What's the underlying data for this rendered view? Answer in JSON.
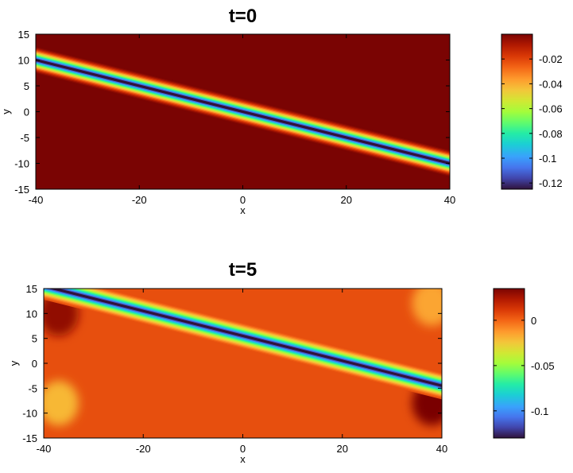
{
  "chart_data": [
    {
      "type": "heatmap",
      "title": "t=0",
      "xlabel": "x",
      "ylabel": "y",
      "xlim": [
        -40,
        40
      ],
      "ylim": [
        -15,
        15
      ],
      "xticks": [
        "-40",
        "-20",
        "0",
        "20",
        "40"
      ],
      "yticks": [
        "15",
        "10",
        "5",
        "0",
        "-5",
        "-10",
        "-15"
      ],
      "colorbar": {
        "min": -0.125,
        "max": 0,
        "ticks": [
          "-0.02",
          "-0.04",
          "-0.06",
          "-0.08",
          "-0.1",
          "-0.12"
        ]
      },
      "colormap": "turbo",
      "feature": {
        "kind": "line soliton",
        "points": [
          [
            -40,
            10
          ],
          [
            40,
            -10
          ]
        ],
        "min_value": -0.125,
        "background": 0
      }
    },
    {
      "type": "heatmap",
      "title": "t=5",
      "xlabel": "x",
      "ylabel": "y",
      "xlim": [
        -40,
        40
      ],
      "ylim": [
        -15,
        15
      ],
      "xticks": [
        "-40",
        "-20",
        "0",
        "20",
        "40"
      ],
      "yticks": [
        "15",
        "10",
        "5",
        "0",
        "-5",
        "-10",
        "-15"
      ],
      "colorbar": {
        "min": -0.13,
        "max": 0.035,
        "ticks": [
          "0",
          "-0.05",
          "-0.1"
        ]
      },
      "colormap": "turbo",
      "feature": {
        "kind": "line soliton",
        "points": [
          [
            -38,
            15
          ],
          [
            40,
            -4.5
          ]
        ],
        "min_value": -0.13,
        "background": 0.005
      },
      "blobs": [
        {
          "x": -37,
          "y": 10,
          "value": 0.03
        },
        {
          "x": -37,
          "y": -8,
          "value": -0.02
        },
        {
          "x": 38,
          "y": 12,
          "value": -0.015
        },
        {
          "x": 38,
          "y": -8,
          "value": 0.035
        }
      ]
    }
  ]
}
